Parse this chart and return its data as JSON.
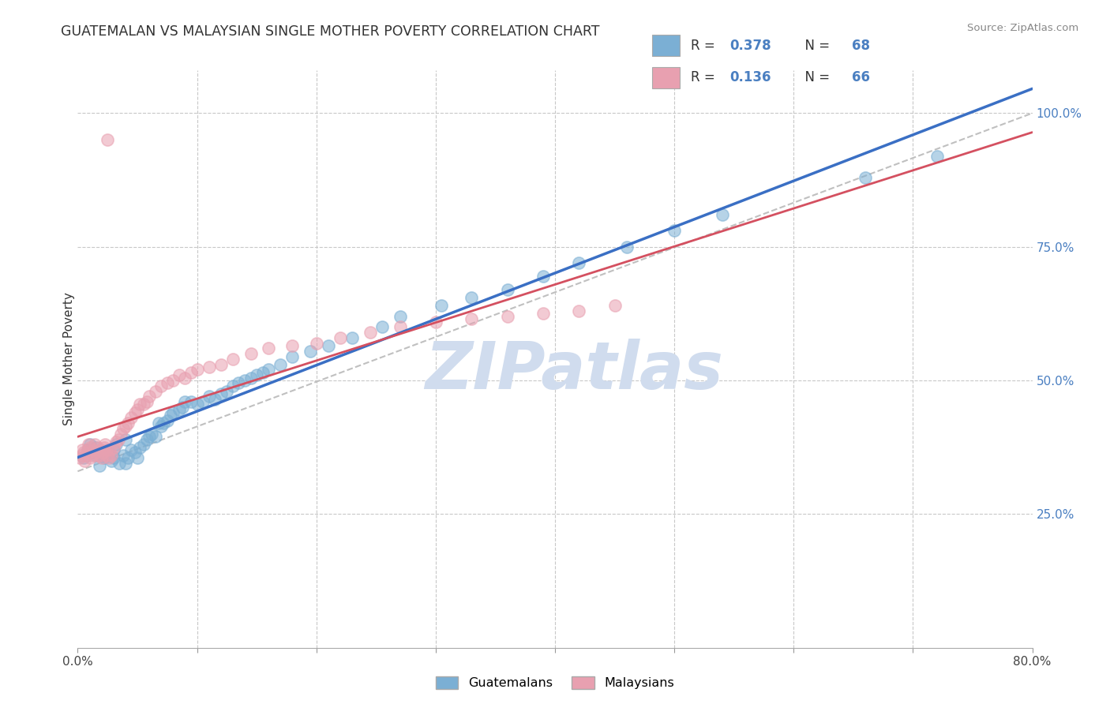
{
  "title": "GUATEMALAN VS MALAYSIAN SINGLE MOTHER POVERTY CORRELATION CHART",
  "source": "Source: ZipAtlas.com",
  "ylabel": "Single Mother Poverty",
  "xlim": [
    0.0,
    0.8
  ],
  "ylim": [
    0.0,
    1.08
  ],
  "R_blue": 0.378,
  "N_blue": 68,
  "R_pink": 0.136,
  "N_pink": 66,
  "blue_color": "#7bafd4",
  "pink_color": "#e8a0b0",
  "blue_line_color": "#3a6fc4",
  "pink_line_color": "#d45060",
  "dashed_line_color": "#c0c0c0",
  "watermark_color": "#d0dcee",
  "legend_label_blue": "Guatemalans",
  "legend_label_pink": "Malaysians",
  "blue_x": [
    0.005,
    0.008,
    0.01,
    0.012,
    0.015,
    0.015,
    0.018,
    0.02,
    0.022,
    0.025,
    0.028,
    0.03,
    0.03,
    0.032,
    0.035,
    0.038,
    0.04,
    0.04,
    0.042,
    0.045,
    0.048,
    0.05,
    0.052,
    0.055,
    0.058,
    0.06,
    0.062,
    0.065,
    0.068,
    0.07,
    0.072,
    0.075,
    0.078,
    0.08,
    0.085,
    0.088,
    0.09,
    0.095,
    0.1,
    0.105,
    0.11,
    0.115,
    0.12,
    0.125,
    0.13,
    0.135,
    0.14,
    0.145,
    0.15,
    0.155,
    0.16,
    0.17,
    0.18,
    0.195,
    0.21,
    0.23,
    0.255,
    0.27,
    0.305,
    0.33,
    0.36,
    0.39,
    0.42,
    0.46,
    0.5,
    0.54,
    0.66,
    0.72
  ],
  "blue_y": [
    0.355,
    0.37,
    0.38,
    0.365,
    0.36,
    0.375,
    0.34,
    0.36,
    0.355,
    0.365,
    0.35,
    0.355,
    0.37,
    0.38,
    0.345,
    0.36,
    0.39,
    0.345,
    0.355,
    0.37,
    0.365,
    0.355,
    0.375,
    0.38,
    0.39,
    0.395,
    0.4,
    0.395,
    0.42,
    0.415,
    0.42,
    0.425,
    0.435,
    0.44,
    0.445,
    0.45,
    0.46,
    0.46,
    0.455,
    0.46,
    0.47,
    0.465,
    0.475,
    0.48,
    0.49,
    0.495,
    0.5,
    0.505,
    0.51,
    0.515,
    0.52,
    0.53,
    0.545,
    0.555,
    0.565,
    0.58,
    0.6,
    0.62,
    0.64,
    0.655,
    0.67,
    0.695,
    0.72,
    0.75,
    0.78,
    0.81,
    0.88,
    0.92
  ],
  "pink_x": [
    0.002,
    0.003,
    0.004,
    0.005,
    0.006,
    0.007,
    0.008,
    0.009,
    0.01,
    0.01,
    0.012,
    0.013,
    0.014,
    0.015,
    0.016,
    0.017,
    0.018,
    0.019,
    0.02,
    0.021,
    0.022,
    0.023,
    0.024,
    0.025,
    0.026,
    0.027,
    0.028,
    0.03,
    0.032,
    0.034,
    0.036,
    0.038,
    0.04,
    0.042,
    0.045,
    0.048,
    0.05,
    0.052,
    0.055,
    0.058,
    0.06,
    0.065,
    0.07,
    0.075,
    0.08,
    0.085,
    0.09,
    0.095,
    0.1,
    0.11,
    0.12,
    0.13,
    0.145,
    0.16,
    0.18,
    0.2,
    0.22,
    0.245,
    0.27,
    0.3,
    0.33,
    0.36,
    0.39,
    0.42,
    0.45,
    0.025
  ],
  "pink_y": [
    0.355,
    0.36,
    0.37,
    0.365,
    0.35,
    0.36,
    0.37,
    0.38,
    0.355,
    0.375,
    0.36,
    0.37,
    0.38,
    0.365,
    0.36,
    0.375,
    0.37,
    0.36,
    0.355,
    0.365,
    0.375,
    0.38,
    0.37,
    0.36,
    0.355,
    0.37,
    0.36,
    0.375,
    0.385,
    0.39,
    0.4,
    0.41,
    0.415,
    0.42,
    0.43,
    0.44,
    0.445,
    0.455,
    0.455,
    0.46,
    0.47,
    0.48,
    0.49,
    0.495,
    0.5,
    0.51,
    0.505,
    0.515,
    0.52,
    0.525,
    0.53,
    0.54,
    0.55,
    0.56,
    0.565,
    0.57,
    0.58,
    0.59,
    0.6,
    0.61,
    0.615,
    0.62,
    0.625,
    0.63,
    0.64,
    0.95
  ]
}
